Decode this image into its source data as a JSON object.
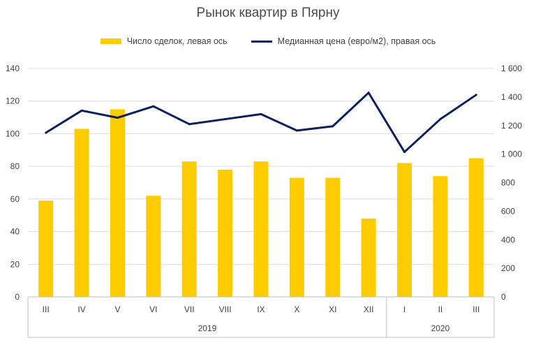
{
  "chart_data": {
    "type": "bar+line",
    "title": "Рынок квартир в Пярну",
    "categories": [
      "III",
      "IV",
      "V",
      "VI",
      "VII",
      "VIII",
      "IX",
      "X",
      "XI",
      "XII",
      "I",
      "II",
      "III"
    ],
    "groups": [
      {
        "label": "2019",
        "count": 10
      },
      {
        "label": "2020",
        "count": 3
      }
    ],
    "series": [
      {
        "name": "Число сделок, левая ось",
        "type": "bar",
        "axis": "left",
        "color": "#ffcc00",
        "values": [
          59,
          103,
          115,
          62,
          83,
          78,
          83,
          73,
          73,
          48,
          82,
          74,
          85
        ]
      },
      {
        "name": "Медианная цена (евро/м2), правая ось",
        "type": "line",
        "axis": "right",
        "color": "#0d1f5c",
        "values": [
          1150,
          1305,
          1255,
          1335,
          1210,
          1245,
          1280,
          1165,
          1195,
          1430,
          1015,
          1245,
          1415
        ]
      }
    ],
    "left_axis": {
      "ylim": [
        0,
        140
      ],
      "ticks": [
        0,
        20,
        40,
        60,
        80,
        100,
        120,
        140
      ],
      "tick_labels": [
        "0",
        "20",
        "40",
        "60",
        "80",
        "100",
        "120",
        "140"
      ]
    },
    "right_axis": {
      "ylim": [
        0,
        1600
      ],
      "ticks": [
        0,
        200,
        400,
        600,
        800,
        1000,
        1200,
        1400,
        1600
      ],
      "tick_labels": [
        "0",
        "200",
        "400",
        "600",
        "800",
        "1 000",
        "1 200",
        "1 400",
        "1 600"
      ]
    },
    "grid": true,
    "legend_position": "top"
  }
}
